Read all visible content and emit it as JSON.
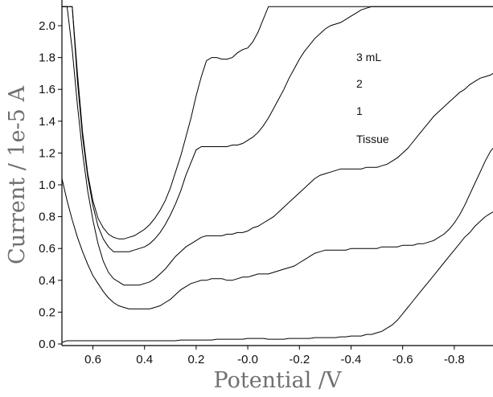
{
  "chart_data": {
    "type": "line",
    "title": "",
    "xlabel": "Potential /V",
    "ylabel": "Current / 1e-5 A",
    "xlim": [
      0.72,
      -0.95
    ],
    "ylim": [
      -0.03,
      2.12
    ],
    "x_reversed": true,
    "grid": false,
    "xticks": [
      0.6,
      0.4,
      0.2,
      0.0,
      -0.2,
      -0.4,
      -0.6,
      -0.8
    ],
    "xtick_labels": [
      "0.6",
      "0.4",
      "0.2",
      "-0.0",
      "-0.2",
      "-0.4",
      "-0.6",
      "-0.8"
    ],
    "yticks": [
      0.0,
      0.2,
      0.4,
      0.6,
      0.8,
      1.0,
      1.2,
      1.4,
      1.6,
      1.8,
      2.0
    ],
    "ytick_labels": [
      "0.0",
      "0.2",
      "0.4",
      "0.6",
      "0.8",
      "1.0",
      "1.2",
      "1.4",
      "1.6",
      "1.8",
      "2.0"
    ],
    "legend_labels": [
      "3 mL",
      "2",
      "1",
      "Tissue"
    ],
    "legend_position": "top-right",
    "series_color": "#000000",
    "series": [
      {
        "x": [
          0.72,
          0.7,
          0.68,
          0.66,
          0.64,
          0.62,
          0.6,
          0.58,
          0.56,
          0.54,
          0.52,
          0.5,
          0.48,
          0.46,
          0.44,
          0.42,
          0.4,
          0.38,
          0.36,
          0.34,
          0.32,
          0.3,
          0.28,
          0.26,
          0.24,
          0.22,
          0.2,
          0.18,
          0.16,
          0.14,
          0.12,
          0.1,
          0.08,
          0.06,
          0.04,
          0.02,
          0.0,
          -0.02,
          -0.04,
          -0.06,
          -0.08,
          -0.1,
          -0.12,
          -0.14,
          -0.16,
          -0.18,
          -0.2,
          -0.22,
          -0.24,
          -0.26,
          -0.28,
          -0.3,
          -0.32,
          -0.34,
          -0.36,
          -0.38,
          -0.4,
          -0.42,
          -0.44,
          -0.46,
          -0.48,
          -0.5,
          -0.52,
          -0.54,
          -0.56,
          -0.58,
          -0.6,
          -0.62,
          -0.64,
          -0.66,
          -0.68,
          -0.7,
          -0.72,
          -0.74,
          -0.76,
          -0.78,
          -0.8,
          -0.82,
          -0.84,
          -0.86,
          -0.88,
          -0.9,
          -0.92,
          -0.94,
          -0.95
        ],
        "y": [
          0.01,
          0.02,
          0.02,
          0.02,
          0.02,
          0.02,
          0.02,
          0.02,
          0.02,
          0.02,
          0.02,
          0.02,
          0.02,
          0.02,
          0.02,
          0.02,
          0.02,
          0.02,
          0.02,
          0.02,
          0.02,
          0.02,
          0.02,
          0.025,
          0.025,
          0.025,
          0.025,
          0.025,
          0.025,
          0.025,
          0.03,
          0.03,
          0.03,
          0.03,
          0.03,
          0.03,
          0.035,
          0.035,
          0.035,
          0.035,
          0.03,
          0.03,
          0.03,
          0.03,
          0.035,
          0.035,
          0.035,
          0.035,
          0.035,
          0.04,
          0.04,
          0.04,
          0.04,
          0.04,
          0.045,
          0.045,
          0.05,
          0.05,
          0.05,
          0.06,
          0.06,
          0.07,
          0.08,
          0.1,
          0.12,
          0.15,
          0.19,
          0.23,
          0.27,
          0.31,
          0.35,
          0.39,
          0.43,
          0.47,
          0.51,
          0.55,
          0.59,
          0.63,
          0.67,
          0.7,
          0.74,
          0.77,
          0.8,
          0.82,
          0.83
        ]
      },
      {
        "x": [
          0.72,
          0.7,
          0.68,
          0.66,
          0.64,
          0.62,
          0.6,
          0.58,
          0.56,
          0.54,
          0.52,
          0.5,
          0.48,
          0.46,
          0.44,
          0.42,
          0.4,
          0.38,
          0.36,
          0.34,
          0.32,
          0.3,
          0.28,
          0.26,
          0.24,
          0.22,
          0.2,
          0.18,
          0.16,
          0.14,
          0.12,
          0.1,
          0.08,
          0.06,
          0.04,
          0.02,
          0.0,
          -0.02,
          -0.04,
          -0.06,
          -0.08,
          -0.1,
          -0.12,
          -0.14,
          -0.16,
          -0.18,
          -0.2,
          -0.22,
          -0.24,
          -0.26,
          -0.28,
          -0.3,
          -0.32,
          -0.34,
          -0.36,
          -0.38,
          -0.4,
          -0.42,
          -0.44,
          -0.46,
          -0.48,
          -0.5,
          -0.52,
          -0.54,
          -0.56,
          -0.58,
          -0.6,
          -0.62,
          -0.64,
          -0.66,
          -0.68,
          -0.7,
          -0.72,
          -0.74,
          -0.76,
          -0.78,
          -0.8,
          -0.82,
          -0.84,
          -0.86,
          -0.88,
          -0.9,
          -0.92,
          -0.94,
          -0.95
        ],
        "y": [
          1.04,
          0.9,
          0.78,
          0.67,
          0.58,
          0.5,
          0.43,
          0.38,
          0.33,
          0.29,
          0.26,
          0.24,
          0.23,
          0.22,
          0.22,
          0.22,
          0.22,
          0.22,
          0.23,
          0.24,
          0.26,
          0.28,
          0.31,
          0.34,
          0.36,
          0.38,
          0.39,
          0.4,
          0.4,
          0.41,
          0.41,
          0.41,
          0.4,
          0.4,
          0.41,
          0.42,
          0.42,
          0.43,
          0.44,
          0.44,
          0.44,
          0.45,
          0.46,
          0.47,
          0.48,
          0.49,
          0.51,
          0.53,
          0.55,
          0.57,
          0.58,
          0.59,
          0.59,
          0.59,
          0.59,
          0.59,
          0.6,
          0.6,
          0.6,
          0.6,
          0.6,
          0.6,
          0.61,
          0.61,
          0.61,
          0.61,
          0.62,
          0.62,
          0.62,
          0.63,
          0.63,
          0.64,
          0.65,
          0.67,
          0.69,
          0.72,
          0.76,
          0.81,
          0.87,
          0.94,
          1.01,
          1.08,
          1.15,
          1.21,
          1.23
        ]
      },
      {
        "x": [
          0.72,
          0.7,
          0.68,
          0.66,
          0.64,
          0.62,
          0.6,
          0.58,
          0.56,
          0.54,
          0.52,
          0.5,
          0.48,
          0.46,
          0.44,
          0.42,
          0.4,
          0.38,
          0.36,
          0.34,
          0.32,
          0.3,
          0.28,
          0.26,
          0.24,
          0.22,
          0.2,
          0.18,
          0.16,
          0.14,
          0.12,
          0.1,
          0.08,
          0.06,
          0.04,
          0.02,
          0.0,
          -0.02,
          -0.04,
          -0.06,
          -0.08,
          -0.1,
          -0.12,
          -0.14,
          -0.16,
          -0.18,
          -0.2,
          -0.22,
          -0.24,
          -0.26,
          -0.28,
          -0.3,
          -0.32,
          -0.34,
          -0.36,
          -0.38,
          -0.4,
          -0.42,
          -0.44,
          -0.46,
          -0.48,
          -0.5,
          -0.52,
          -0.54,
          -0.56,
          -0.58,
          -0.6,
          -0.62,
          -0.64,
          -0.66,
          -0.68,
          -0.7,
          -0.72,
          -0.74,
          -0.76,
          -0.78,
          -0.8,
          -0.82,
          -0.84,
          -0.86,
          -0.88,
          -0.9,
          -0.92,
          -0.94,
          -0.95
        ],
        "y": [
          2.12,
          2.12,
          1.85,
          1.5,
          1.2,
          0.96,
          0.78,
          0.63,
          0.52,
          0.45,
          0.41,
          0.39,
          0.37,
          0.37,
          0.37,
          0.37,
          0.38,
          0.39,
          0.41,
          0.44,
          0.47,
          0.51,
          0.55,
          0.58,
          0.61,
          0.63,
          0.65,
          0.67,
          0.68,
          0.68,
          0.68,
          0.68,
          0.69,
          0.69,
          0.7,
          0.7,
          0.71,
          0.73,
          0.74,
          0.76,
          0.78,
          0.8,
          0.83,
          0.86,
          0.89,
          0.92,
          0.95,
          0.98,
          1.01,
          1.04,
          1.06,
          1.07,
          1.08,
          1.09,
          1.1,
          1.1,
          1.1,
          1.1,
          1.1,
          1.11,
          1.11,
          1.11,
          1.12,
          1.13,
          1.15,
          1.17,
          1.2,
          1.23,
          1.27,
          1.31,
          1.35,
          1.39,
          1.43,
          1.46,
          1.49,
          1.52,
          1.55,
          1.58,
          1.6,
          1.63,
          1.65,
          1.67,
          1.68,
          1.69,
          1.7
        ]
      },
      {
        "x": [
          0.72,
          0.7,
          0.68,
          0.66,
          0.64,
          0.62,
          0.6,
          0.58,
          0.56,
          0.54,
          0.52,
          0.5,
          0.48,
          0.46,
          0.44,
          0.42,
          0.4,
          0.38,
          0.36,
          0.34,
          0.32,
          0.3,
          0.28,
          0.26,
          0.24,
          0.22,
          0.2,
          0.18,
          0.16,
          0.14,
          0.12,
          0.1,
          0.08,
          0.06,
          0.04,
          0.02,
          0.0,
          -0.02,
          -0.04,
          -0.06,
          -0.08,
          -0.1,
          -0.12,
          -0.14,
          -0.16,
          -0.18,
          -0.2,
          -0.22,
          -0.24,
          -0.26,
          -0.28,
          -0.3,
          -0.32,
          -0.34,
          -0.36,
          -0.38,
          -0.4,
          -0.42,
          -0.44,
          -0.46,
          -0.48,
          -0.5,
          -0.52,
          -0.54,
          -0.56,
          -0.58,
          -0.6,
          -0.62,
          -0.64,
          -0.66,
          -0.68,
          -0.7,
          -0.72,
          -0.74,
          -0.76,
          -0.78,
          -0.8,
          -0.82,
          -0.84,
          -0.86,
          -0.88,
          -0.9,
          -0.92,
          -0.94,
          -0.95
        ],
        "y": [
          2.12,
          2.12,
          2.12,
          1.65,
          1.3,
          1.05,
          0.87,
          0.74,
          0.66,
          0.61,
          0.58,
          0.58,
          0.58,
          0.58,
          0.59,
          0.6,
          0.61,
          0.63,
          0.66,
          0.7,
          0.75,
          0.81,
          0.88,
          0.96,
          1.06,
          1.14,
          1.22,
          1.24,
          1.24,
          1.24,
          1.24,
          1.24,
          1.24,
          1.25,
          1.25,
          1.26,
          1.28,
          1.3,
          1.33,
          1.37,
          1.42,
          1.48,
          1.54,
          1.6,
          1.67,
          1.73,
          1.79,
          1.84,
          1.88,
          1.92,
          1.95,
          1.98,
          2.0,
          2.01,
          2.02,
          2.04,
          2.06,
          2.08,
          2.1,
          2.11,
          2.12,
          2.12,
          2.12,
          2.12,
          2.12,
          2.12,
          2.12,
          2.12,
          2.12,
          2.12,
          2.12,
          2.12,
          2.12,
          2.12,
          2.12,
          2.12,
          2.12,
          2.12,
          2.12,
          2.12,
          2.12,
          2.12,
          2.12,
          2.12,
          2.12
        ]
      },
      {
        "x": [
          0.72,
          0.7,
          0.68,
          0.66,
          0.64,
          0.62,
          0.6,
          0.58,
          0.56,
          0.54,
          0.52,
          0.5,
          0.48,
          0.46,
          0.44,
          0.42,
          0.4,
          0.38,
          0.36,
          0.34,
          0.32,
          0.3,
          0.28,
          0.26,
          0.24,
          0.22,
          0.2,
          0.18,
          0.16,
          0.14,
          0.12,
          0.1,
          0.08,
          0.06,
          0.04,
          0.02,
          0.0,
          -0.02,
          -0.04,
          -0.06,
          -0.08,
          -0.1,
          -0.12,
          -0.14,
          -0.16,
          -0.18,
          -0.2,
          -0.22,
          -0.24,
          -0.26,
          -0.28,
          -0.3,
          -0.32,
          -0.34,
          -0.36,
          -0.38,
          -0.4,
          -0.42,
          -0.44,
          -0.46,
          -0.48,
          -0.5,
          -0.52,
          -0.54,
          -0.56,
          -0.58,
          -0.6,
          -0.62,
          -0.64,
          -0.66,
          -0.68,
          -0.7,
          -0.72,
          -0.74,
          -0.76,
          -0.78,
          -0.8,
          -0.82,
          -0.84,
          -0.86,
          -0.88,
          -0.9,
          -0.92,
          -0.94,
          -0.95
        ],
        "y": [
          2.12,
          2.12,
          2.12,
          1.7,
          1.33,
          1.07,
          0.9,
          0.79,
          0.73,
          0.69,
          0.67,
          0.66,
          0.66,
          0.67,
          0.68,
          0.7,
          0.72,
          0.75,
          0.79,
          0.84,
          0.9,
          0.98,
          1.08,
          1.18,
          1.3,
          1.42,
          1.56,
          1.68,
          1.78,
          1.8,
          1.8,
          1.79,
          1.79,
          1.8,
          1.83,
          1.85,
          1.86,
          1.9,
          1.96,
          2.04,
          2.12,
          2.12,
          2.12,
          2.12,
          2.12,
          2.12,
          2.12,
          2.12,
          2.12,
          2.12,
          2.12,
          2.12,
          2.12,
          2.12,
          2.12,
          2.12,
          2.12,
          2.12,
          2.12,
          2.12,
          2.12,
          2.12,
          2.12,
          2.12,
          2.12,
          2.12,
          2.12,
          2.12,
          2.12,
          2.12,
          2.12,
          2.12,
          2.12,
          2.12,
          2.12,
          2.12,
          2.12,
          2.12,
          2.12,
          2.12,
          2.12,
          2.12,
          2.12,
          2.12,
          2.12
        ]
      }
    ]
  }
}
